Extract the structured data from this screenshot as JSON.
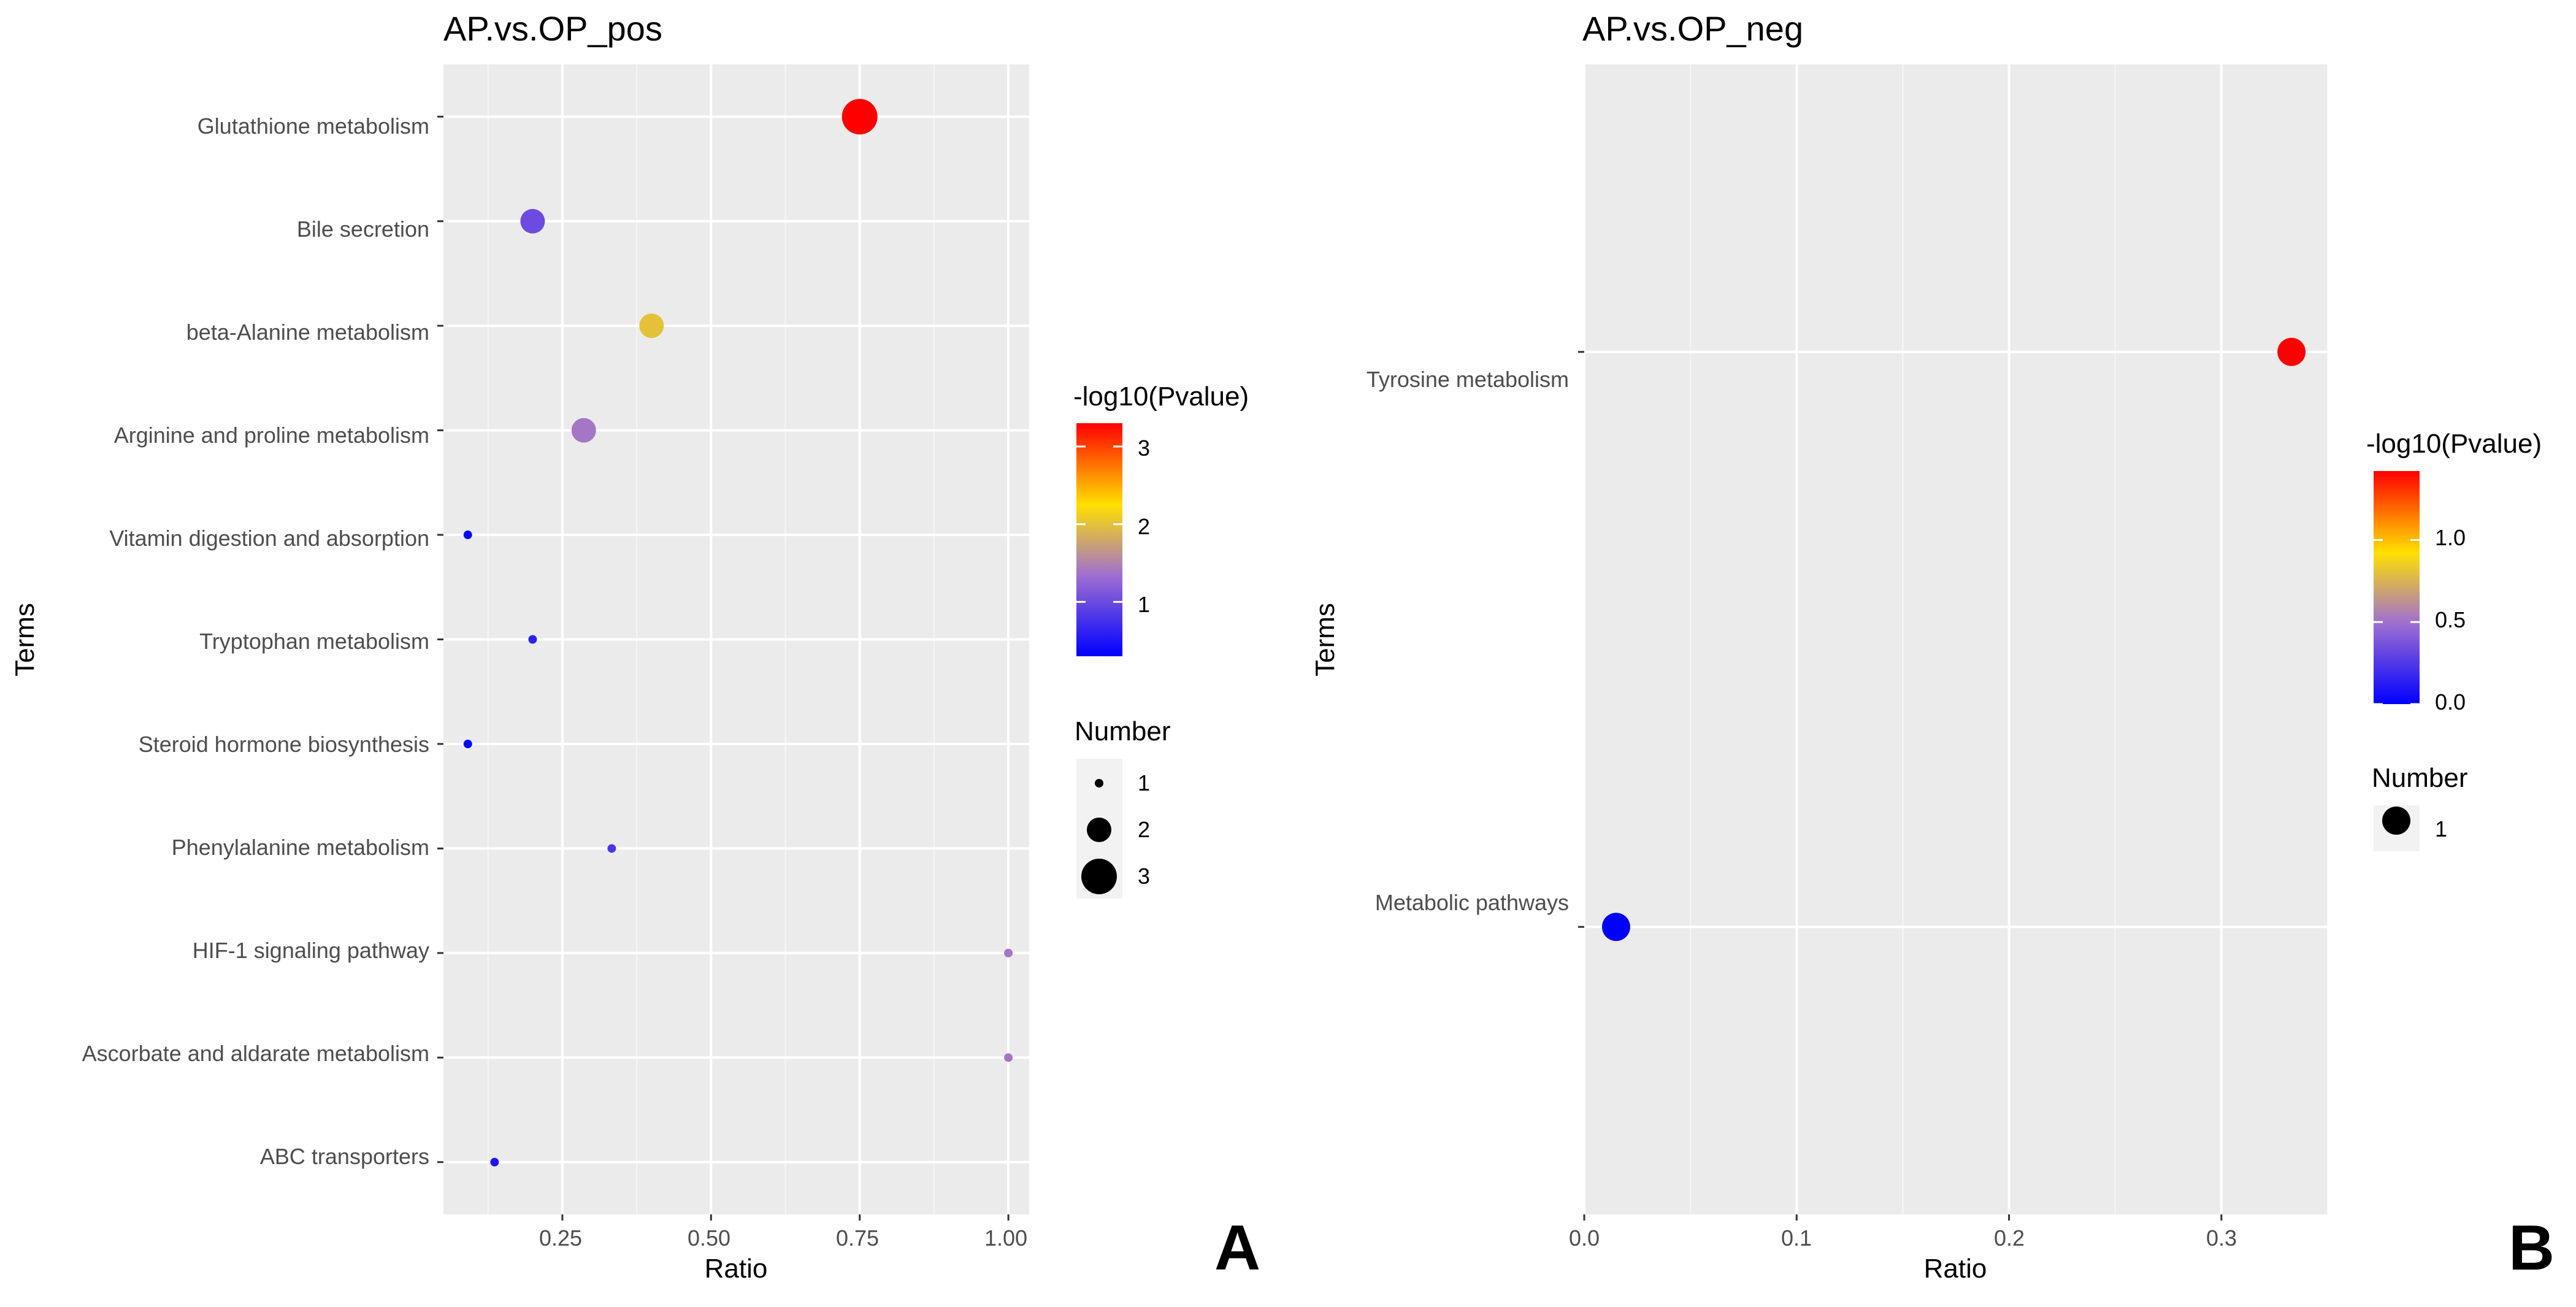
{
  "chart_data": [
    {
      "panel_label": "A",
      "type": "scatter",
      "title": "AP.vs.OP_pos",
      "xlabel": "Ratio",
      "ylabel": "Terms",
      "xlim": [
        0.05,
        1.035
      ],
      "xticks": [
        0.25,
        0.5,
        0.75,
        1.0
      ],
      "xtick_labels": [
        "0.25",
        "0.50",
        "0.75",
        "1.00"
      ],
      "terms": [
        "Glutathione metabolism",
        "Bile secretion",
        "beta-Alanine metabolism",
        "Arginine and proline metabolism",
        "Vitamin digestion and absorption",
        "Tryptophan metabolism",
        "Steroid hormone biosynthesis",
        "Phenylalanine metabolism",
        "HIF-1 signaling pathway",
        "Ascorbate and aldarate metabolism",
        "ABC transporters"
      ],
      "points": [
        {
          "term": "Glutathione metabolism",
          "ratio": 0.75,
          "number": 3,
          "neg_log10_p": 3.3
        },
        {
          "term": "Bile secretion",
          "ratio": 0.2,
          "number": 2,
          "neg_log10_p": 1.0
        },
        {
          "term": "beta-Alanine metabolism",
          "ratio": 0.4,
          "number": 2,
          "neg_log10_p": 2.0
        },
        {
          "term": "Arginine and proline metabolism",
          "ratio": 0.286,
          "number": 2,
          "neg_log10_p": 1.4
        },
        {
          "term": "Vitamin digestion and absorption",
          "ratio": 0.091,
          "number": 1,
          "neg_log10_p": 0.3
        },
        {
          "term": "Tryptophan metabolism",
          "ratio": 0.2,
          "number": 1,
          "neg_log10_p": 0.6
        },
        {
          "term": "Steroid hormone biosynthesis",
          "ratio": 0.091,
          "number": 1,
          "neg_log10_p": 0.3
        },
        {
          "term": "Phenylalanine metabolism",
          "ratio": 0.333,
          "number": 1,
          "neg_log10_p": 0.8
        },
        {
          "term": "HIF-1 signaling pathway",
          "ratio": 1.0,
          "number": 1,
          "neg_log10_p": 1.4
        },
        {
          "term": "Ascorbate and aldarate metabolism",
          "ratio": 1.0,
          "number": 1,
          "neg_log10_p": 1.4
        },
        {
          "term": "ABC transporters",
          "ratio": 0.136,
          "number": 1,
          "neg_log10_p": 0.5
        }
      ],
      "color_legend": {
        "title": "-log10(Pvalue)",
        "min": 0.3,
        "max": 3.3,
        "breaks": [
          1,
          2,
          3
        ],
        "labels": [
          "1",
          "2",
          "3"
        ]
      },
      "size_legend": {
        "title": "Number",
        "values": [
          1,
          2,
          3
        ],
        "labels": [
          "1",
          "2",
          "3"
        ]
      }
    },
    {
      "panel_label": "B",
      "type": "scatter",
      "title": "AP.vs.OP_neg",
      "xlabel": "Ratio",
      "ylabel": "Terms",
      "xlim": [
        0.0,
        0.35
      ],
      "xticks": [
        0.0,
        0.1,
        0.2,
        0.3
      ],
      "xtick_labels": [
        "0.0",
        "0.1",
        "0.2",
        "0.3"
      ],
      "terms": [
        "Tyrosine metabolism",
        "Metabolic pathways"
      ],
      "points": [
        {
          "term": "Tyrosine metabolism",
          "ratio": 0.333,
          "number": 1,
          "neg_log10_p": 1.42
        },
        {
          "term": "Metabolic pathways",
          "ratio": 0.015,
          "number": 1,
          "neg_log10_p": 0.0
        }
      ],
      "color_legend": {
        "title": "-log10(Pvalue)",
        "min": 0.0,
        "max": 1.42,
        "breaks": [
          0.0,
          0.5,
          1.0
        ],
        "labels": [
          "0.0",
          "0.5",
          "1.0"
        ]
      },
      "size_legend": {
        "title": "Number",
        "values": [
          1
        ],
        "labels": [
          "1"
        ]
      }
    }
  ],
  "colors": {
    "panel_background": "#ebebeb",
    "grid": "#ffffff",
    "gradient_low": "#0000ff",
    "gradient_mid_low": "#a070d0",
    "gradient_mid": "#ffe000",
    "gradient_high": "#ff0000"
  }
}
